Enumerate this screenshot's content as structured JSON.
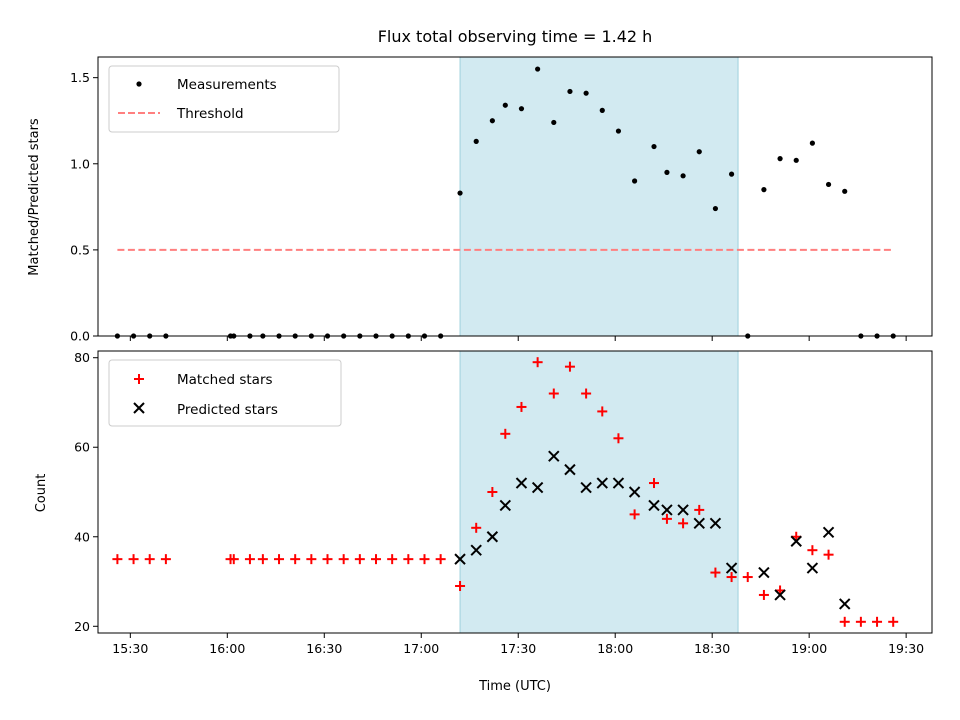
{
  "chart_data": [
    {
      "type": "scatter",
      "title": "Flux total observing time = 1.42 h",
      "xlabel": "",
      "ylabel": "Matched/Predicted stars",
      "xlim": [
        "15:20",
        "19:38"
      ],
      "ylim": [
        0,
        1.62
      ],
      "yticks": [
        0.0,
        0.5,
        1.0,
        1.5
      ],
      "ytick_labels": [
        "0.0",
        "0.5",
        "1.0",
        "1.5"
      ],
      "shaded_region": {
        "x": [
          "17:12",
          "18:38"
        ],
        "color": "#add8e6"
      },
      "legend_position": "upper-left",
      "series": [
        {
          "name": "Measurements",
          "marker": "dot",
          "color": "#000000",
          "x": [
            "15:26",
            "15:31",
            "15:36",
            "15:41",
            "16:01",
            "16:02",
            "16:07",
            "16:11",
            "16:16",
            "16:21",
            "16:26",
            "16:31",
            "16:36",
            "16:41",
            "16:46",
            "16:51",
            "16:56",
            "17:01",
            "17:06",
            "17:12",
            "17:17",
            "17:22",
            "17:26",
            "17:31",
            "17:36",
            "17:41",
            "17:46",
            "17:51",
            "17:56",
            "18:01",
            "18:06",
            "18:12",
            "18:16",
            "18:21",
            "18:26",
            "18:31",
            "18:36",
            "18:41",
            "18:46",
            "18:51",
            "18:56",
            "19:01",
            "19:06",
            "19:11",
            "19:16",
            "19:21",
            "19:26"
          ],
          "y": [
            0,
            0,
            0,
            0,
            0,
            0,
            0,
            0,
            0,
            0,
            0,
            0,
            0,
            0,
            0,
            0,
            0,
            0,
            0,
            0.83,
            1.13,
            1.25,
            1.34,
            1.32,
            1.55,
            1.24,
            1.42,
            1.41,
            1.31,
            1.19,
            0.9,
            1.1,
            0.95,
            0.93,
            1.07,
            0.74,
            0.94,
            0,
            0.85,
            1.03,
            1.02,
            1.12,
            0.88,
            0.84,
            0,
            0,
            0
          ]
        },
        {
          "name": "Threshold",
          "line_style": "dashed",
          "color": "#ff7f7f",
          "x": [
            "15:26",
            "19:26"
          ],
          "y": [
            0.5,
            0.5
          ]
        }
      ]
    },
    {
      "type": "scatter",
      "title": "",
      "xlabel": "Time (UTC)",
      "ylabel": "Count",
      "xlim": [
        "15:20",
        "19:38"
      ],
      "ylim": [
        18.5,
        81.5
      ],
      "yticks": [
        20,
        40,
        60,
        80
      ],
      "ytick_labels": [
        "20",
        "40",
        "60",
        "80"
      ],
      "xticks": [
        "15:30",
        "16:00",
        "16:30",
        "17:00",
        "17:30",
        "18:00",
        "18:30",
        "19:00",
        "19:30"
      ],
      "xtick_labels": [
        "15:30",
        "16:00",
        "16:30",
        "17:00",
        "17:30",
        "18:00",
        "18:30",
        "19:00",
        "19:30"
      ],
      "shaded_region": {
        "x": [
          "17:12",
          "18:38"
        ],
        "color": "#add8e6"
      },
      "legend_position": "upper-left",
      "series": [
        {
          "name": "Matched stars",
          "marker": "plus",
          "color": "#ff0000",
          "x": [
            "15:26",
            "15:31",
            "15:36",
            "15:41",
            "16:01",
            "16:02",
            "16:07",
            "16:11",
            "16:16",
            "16:21",
            "16:26",
            "16:31",
            "16:36",
            "16:41",
            "16:46",
            "16:51",
            "16:56",
            "17:01",
            "17:06",
            "17:12",
            "17:17",
            "17:22",
            "17:26",
            "17:31",
            "17:36",
            "17:41",
            "17:46",
            "17:51",
            "17:56",
            "18:01",
            "18:06",
            "18:12",
            "18:16",
            "18:21",
            "18:26",
            "18:31",
            "18:36",
            "18:41",
            "18:46",
            "18:51",
            "18:56",
            "19:01",
            "19:06",
            "19:11",
            "19:16",
            "19:21",
            "19:26"
          ],
          "y": [
            35,
            35,
            35,
            35,
            35,
            35,
            35,
            35,
            35,
            35,
            35,
            35,
            35,
            35,
            35,
            35,
            35,
            35,
            35,
            29,
            42,
            50,
            63,
            69,
            79,
            72,
            78,
            72,
            68,
            62,
            45,
            52,
            44,
            43,
            46,
            32,
            31,
            31,
            27,
            28,
            40,
            37,
            36,
            21,
            21,
            21,
            21
          ]
        },
        {
          "name": "Predicted stars",
          "marker": "x",
          "color": "#000000",
          "x": [
            "17:12",
            "17:17",
            "17:22",
            "17:26",
            "17:31",
            "17:36",
            "17:41",
            "17:46",
            "17:51",
            "17:56",
            "18:01",
            "18:06",
            "18:12",
            "18:16",
            "18:21",
            "18:26",
            "18:31",
            "18:36",
            "18:46",
            "18:51",
            "18:56",
            "19:01",
            "19:06",
            "19:11"
          ],
          "y": [
            35,
            37,
            40,
            47,
            52,
            51,
            58,
            55,
            51,
            52,
            52,
            50,
            47,
            46,
            46,
            43,
            43,
            33,
            32,
            27,
            39,
            33,
            41,
            25
          ]
        }
      ]
    }
  ]
}
